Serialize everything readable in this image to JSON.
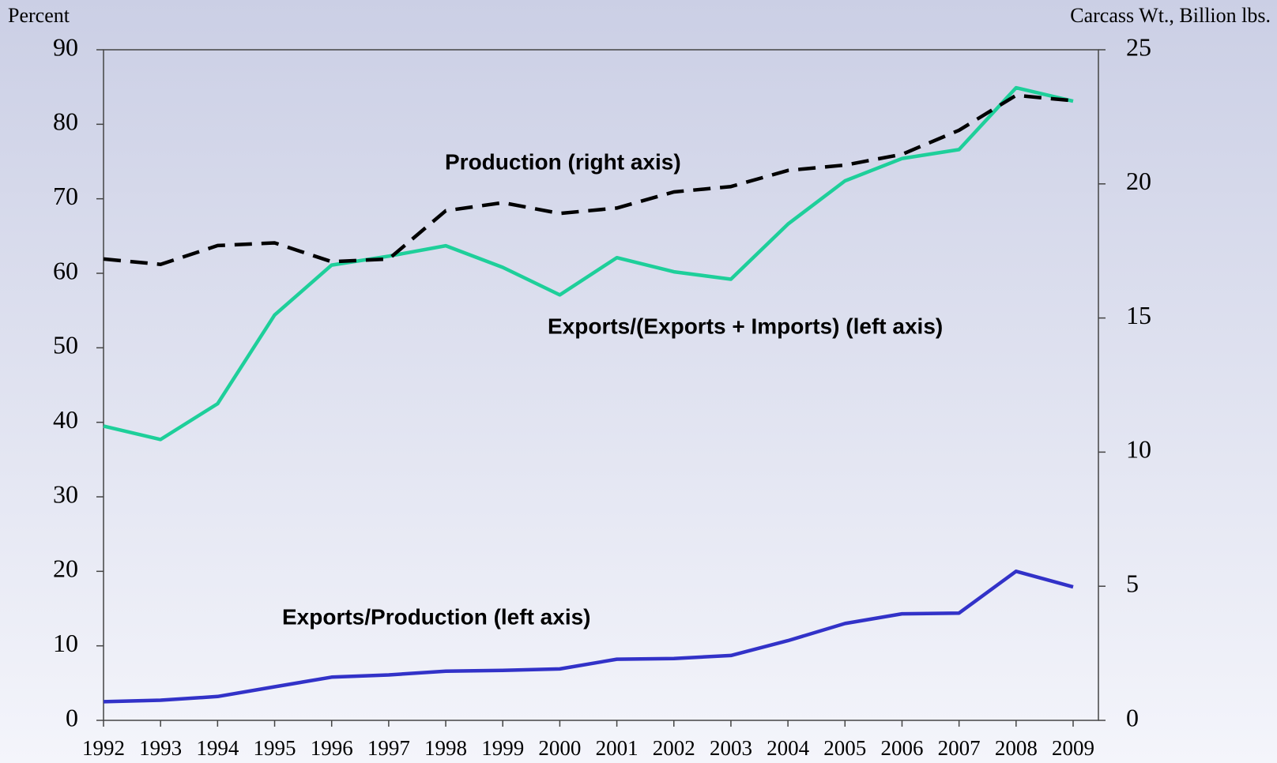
{
  "chart_data": {
    "type": "line",
    "y_label": "Percent",
    "y2_label": "Carcass Wt., Billion lbs.",
    "categories": [
      "1992",
      "1993",
      "1994",
      "1995",
      "1996",
      "1997",
      "1998",
      "1999",
      "2000",
      "2001",
      "2002",
      "2003",
      "2004",
      "2005",
      "2006",
      "2007",
      "2008",
      "2009"
    ],
    "series": [
      {
        "name": "Exports/(Exports + Imports)  (left axis)",
        "color": "#1ecf9a",
        "axis": "y",
        "dashed": false,
        "values": [
          39.5,
          37.7,
          42.5,
          54.4,
          61.1,
          62.3,
          63.7,
          60.8,
          57.1,
          62.1,
          60.2,
          59.2,
          66.6,
          72.4,
          75.4,
          76.6,
          84.9,
          83.1
        ]
      },
      {
        "name": "Exports/Production (left axis)",
        "color": "#3232c8",
        "axis": "y",
        "dashed": false,
        "values": [
          2.5,
          2.7,
          3.2,
          4.5,
          5.8,
          6.1,
          6.6,
          6.7,
          6.9,
          8.2,
          8.3,
          8.7,
          10.7,
          13.0,
          14.3,
          14.4,
          20.0,
          17.9
        ]
      },
      {
        "name": "Production (right axis)",
        "color": "#000000",
        "axis": "y2",
        "dashed": true,
        "values": [
          17.2,
          17.0,
          17.7,
          17.8,
          17.1,
          17.2,
          19.0,
          19.3,
          18.9,
          19.1,
          19.7,
          19.9,
          20.5,
          20.7,
          21.1,
          22.0,
          23.3,
          23.1
        ]
      }
    ],
    "ylim": [
      0,
      90
    ],
    "yticks": [
      0,
      10,
      20,
      30,
      40,
      50,
      60,
      70,
      80,
      90
    ],
    "y2lim": [
      0,
      25
    ],
    "y2ticks": [
      0,
      5,
      10,
      15,
      20,
      25
    ],
    "grid": false
  }
}
